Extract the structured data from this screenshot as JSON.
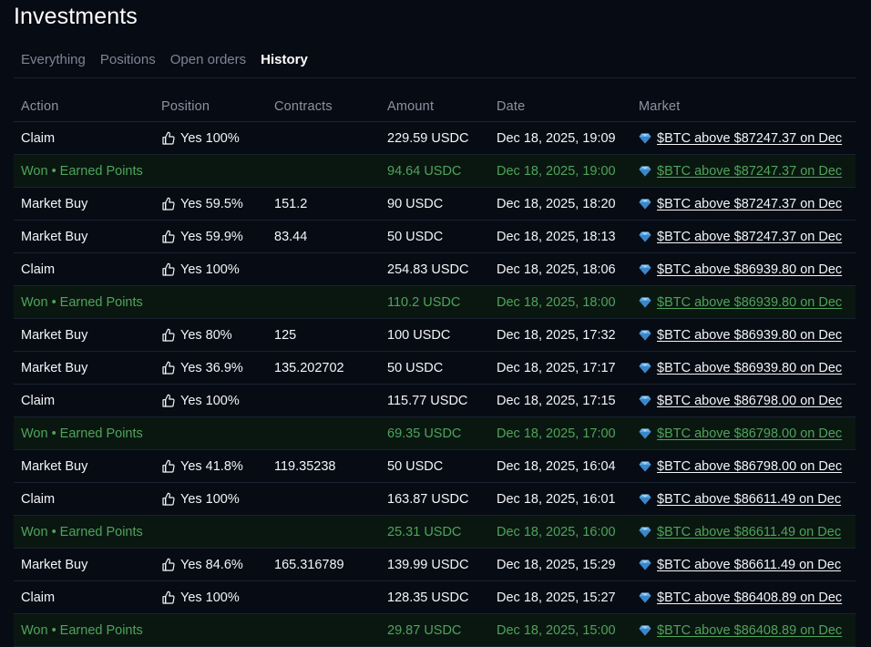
{
  "page": {
    "title": "Investments"
  },
  "tabs": [
    {
      "label": "Everything",
      "active": false
    },
    {
      "label": "Positions",
      "active": false
    },
    {
      "label": "Open orders",
      "active": false
    },
    {
      "label": "History",
      "active": true
    }
  ],
  "table": {
    "headers": {
      "action": "Action",
      "position": "Position",
      "contracts": "Contracts",
      "amount": "Amount",
      "date": "Date",
      "market": "Market"
    },
    "rows": [
      {
        "type": "normal",
        "action": "Claim",
        "position": "Yes 100%",
        "contracts": "",
        "amount": "229.59 USDC",
        "date": "Dec 18, 2025, 19:09",
        "market": "$BTC above $87247.37 on Dec"
      },
      {
        "type": "won",
        "action": "Won • Earned Points",
        "position": "",
        "contracts": "",
        "amount": "94.64 USDC",
        "date": "Dec 18, 2025, 19:00",
        "market": "$BTC above $87247.37 on Dec"
      },
      {
        "type": "normal",
        "action": "Market Buy",
        "position": "Yes 59.5%",
        "contracts": "151.2",
        "amount": "90 USDC",
        "date": "Dec 18, 2025, 18:20",
        "market": "$BTC above $87247.37 on Dec"
      },
      {
        "type": "normal",
        "action": "Market Buy",
        "position": "Yes 59.9%",
        "contracts": "83.44",
        "amount": "50 USDC",
        "date": "Dec 18, 2025, 18:13",
        "market": "$BTC above $87247.37 on Dec"
      },
      {
        "type": "normal",
        "action": "Claim",
        "position": "Yes 100%",
        "contracts": "",
        "amount": "254.83 USDC",
        "date": "Dec 18, 2025, 18:06",
        "market": "$BTC above $86939.80 on Dec"
      },
      {
        "type": "won",
        "action": "Won • Earned Points",
        "position": "",
        "contracts": "",
        "amount": "110.2 USDC",
        "date": "Dec 18, 2025, 18:00",
        "market": "$BTC above $86939.80 on Dec"
      },
      {
        "type": "normal",
        "action": "Market Buy",
        "position": "Yes 80%",
        "contracts": "125",
        "amount": "100 USDC",
        "date": "Dec 18, 2025, 17:32",
        "market": "$BTC above $86939.80 on Dec"
      },
      {
        "type": "normal",
        "action": "Market Buy",
        "position": "Yes 36.9%",
        "contracts": "135.202702",
        "amount": "50 USDC",
        "date": "Dec 18, 2025, 17:17",
        "market": "$BTC above $86939.80 on Dec"
      },
      {
        "type": "normal",
        "action": "Claim",
        "position": "Yes 100%",
        "contracts": "",
        "amount": "115.77 USDC",
        "date": "Dec 18, 2025, 17:15",
        "market": "$BTC above $86798.00 on Dec"
      },
      {
        "type": "won",
        "action": "Won • Earned Points",
        "position": "",
        "contracts": "",
        "amount": "69.35 USDC",
        "date": "Dec 18, 2025, 17:00",
        "market": "$BTC above $86798.00 on Dec"
      },
      {
        "type": "normal",
        "action": "Market Buy",
        "position": "Yes 41.8%",
        "contracts": "119.35238",
        "amount": "50 USDC",
        "date": "Dec 18, 2025, 16:04",
        "market": "$BTC above $86798.00 on Dec"
      },
      {
        "type": "normal",
        "action": "Claim",
        "position": "Yes 100%",
        "contracts": "",
        "amount": "163.87 USDC",
        "date": "Dec 18, 2025, 16:01",
        "market": "$BTC above $86611.49 on Dec"
      },
      {
        "type": "won",
        "action": "Won • Earned Points",
        "position": "",
        "contracts": "",
        "amount": "25.31 USDC",
        "date": "Dec 18, 2025, 16:00",
        "market": "$BTC above $86611.49 on Dec"
      },
      {
        "type": "normal",
        "action": "Market Buy",
        "position": "Yes 84.6%",
        "contracts": "165.316789",
        "amount": "139.99 USDC",
        "date": "Dec 18, 2025, 15:29",
        "market": "$BTC above $86611.49 on Dec"
      },
      {
        "type": "normal",
        "action": "Claim",
        "position": "Yes 100%",
        "contracts": "",
        "amount": "128.35 USDC",
        "date": "Dec 18, 2025, 15:27",
        "market": "$BTC above $86408.89 on Dec"
      },
      {
        "type": "won",
        "action": "Won • Earned Points",
        "position": "",
        "contracts": "",
        "amount": "29.87 USDC",
        "date": "Dec 18, 2025, 15:00",
        "market": "$BTC above $86408.89 on Dec"
      }
    ]
  },
  "icons": {
    "position": "thumbs-up-icon",
    "market": "diamond-icon"
  },
  "colors": {
    "background": "#070b14",
    "won_text": "#4fa35a",
    "won_row_bg": "#0a1711",
    "diamond": "#5aa9e6"
  }
}
